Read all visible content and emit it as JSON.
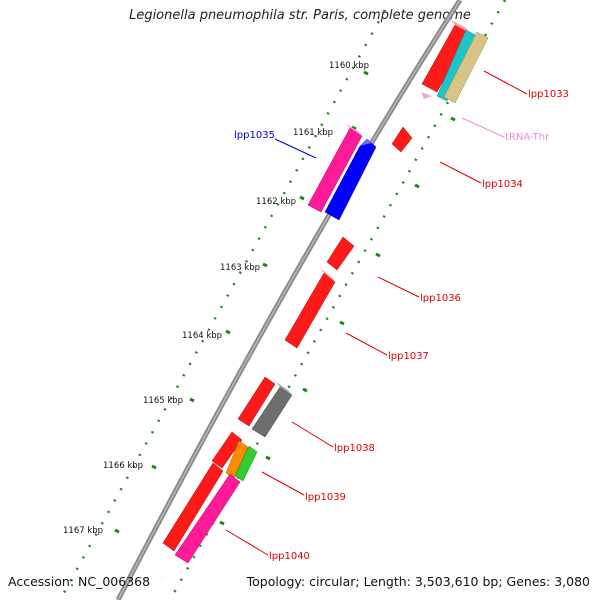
{
  "title": "Legionella pneumophila str. Paris, complete genome",
  "footer": {
    "accession": "Accession: NC_006368",
    "summary": "Topology: circular; Length: 3,503,610 bp; Genes: 3,080"
  },
  "colors": {
    "backbone": "#7a7a7a",
    "tick_dots": "#1a8a1a",
    "label_red": "#e00000",
    "label_blue": "#0000cc",
    "label_pink": "#f08cc8"
  },
  "ticks": [
    "1160 kbp",
    "1161 kbp",
    "1162 kbp",
    "1163 kbp",
    "1164 kbp",
    "1165 kbp",
    "1166 kbp",
    "1167 kbp"
  ],
  "gene_labels": [
    {
      "name": "lpp1033",
      "color": "#e00000"
    },
    {
      "name": "tRNA-Thr",
      "color": "#f08cc8"
    },
    {
      "name": "lpp1034",
      "color": "#e00000"
    },
    {
      "name": "lpp1035",
      "color": "#0000cc"
    },
    {
      "name": "lpp1036",
      "color": "#e00000"
    },
    {
      "name": "lpp1037",
      "color": "#e00000"
    },
    {
      "name": "lpp1038",
      "color": "#e00000"
    },
    {
      "name": "lpp1039",
      "color": "#e00000"
    },
    {
      "name": "lpp1040",
      "color": "#e00000"
    }
  ]
}
